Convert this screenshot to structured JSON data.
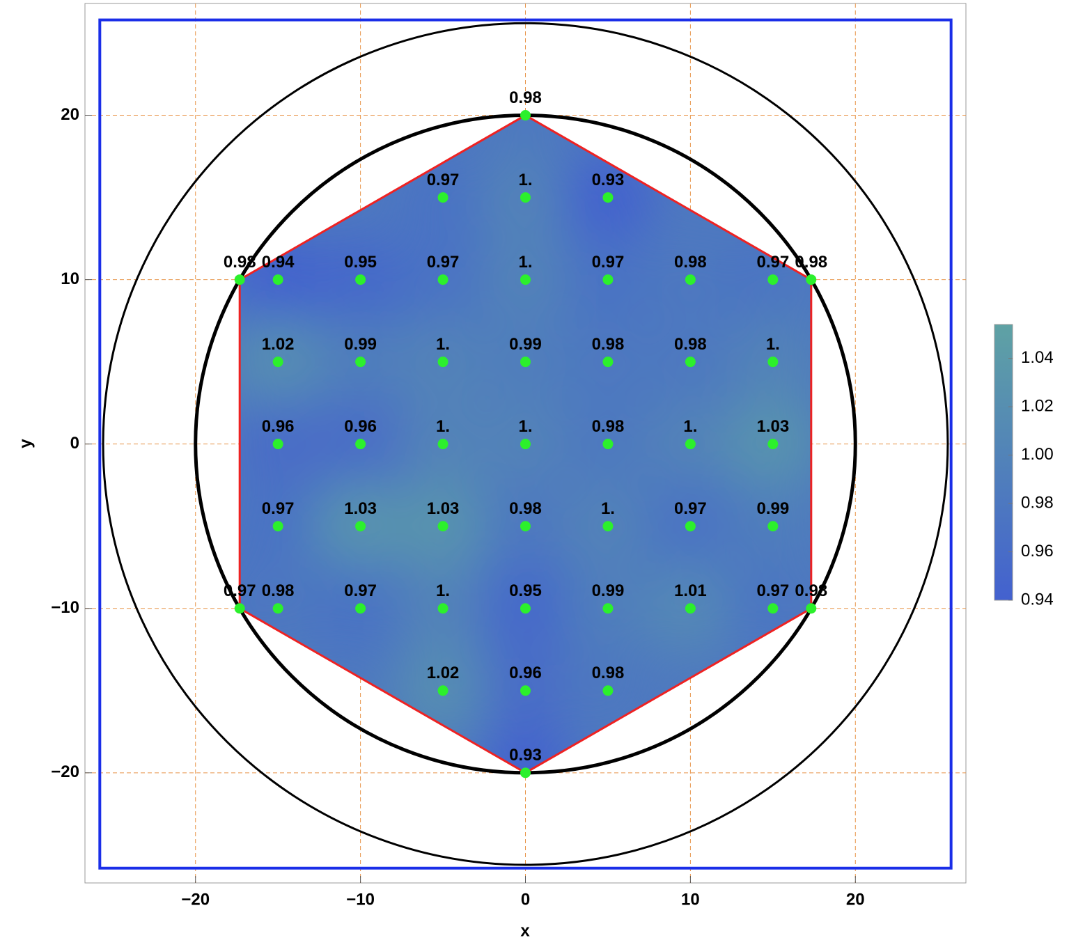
{
  "chart_data": {
    "type": "scatter",
    "xlabel": "x",
    "ylabel": "y",
    "xlim": [
      -26.7,
      26.7
    ],
    "ylim": [
      -26.7,
      26.8
    ],
    "xticks": [
      {
        "value": -20,
        "label": "−20"
      },
      {
        "value": -10,
        "label": "−10"
      },
      0,
      10,
      20
    ],
    "yticks": [
      {
        "value": -20,
        "label": "−20"
      },
      {
        "value": -10,
        "label": "−10"
      },
      0,
      10,
      20
    ],
    "grid": true,
    "grid_color": "#e8954a",
    "point_color": "#2cf02c",
    "hexagon_radius": 20,
    "hexagon_color": "#ee2222",
    "circles": [
      20,
      25.6
    ],
    "square_half_width": 25.8,
    "square_color": "#1a2ee8",
    "series": [
      {
        "x": [
          0,
          -5,
          0,
          5,
          -17.32,
          -15,
          -10,
          -5,
          0,
          5,
          10,
          15,
          17.32,
          -15,
          -10,
          -5,
          0,
          5,
          10,
          15,
          -15,
          -10,
          -5,
          0,
          5,
          10,
          15,
          -15,
          -10,
          -5,
          0,
          5,
          10,
          15,
          -17.32,
          -15,
          -10,
          -5,
          0,
          5,
          10,
          15,
          17.32,
          -5,
          0,
          5,
          0
        ],
        "y": [
          20,
          15,
          15,
          15,
          10,
          10,
          10,
          10,
          10,
          10,
          10,
          10,
          10,
          5,
          5,
          5,
          5,
          5,
          5,
          5,
          0,
          0,
          0,
          0,
          0,
          0,
          0,
          -5,
          -5,
          -5,
          -5,
          -5,
          -5,
          -5,
          -10,
          -10,
          -10,
          -10,
          -10,
          -10,
          -10,
          -10,
          -10,
          -15,
          -15,
          -15,
          -20
        ],
        "values": [
          0.98,
          0.97,
          1,
          0.93,
          0.98,
          0.94,
          0.95,
          0.97,
          1,
          0.97,
          0.98,
          0.97,
          0.98,
          1.02,
          0.99,
          1,
          0.99,
          0.98,
          0.98,
          1,
          0.96,
          0.96,
          1,
          1,
          0.98,
          1,
          1.03,
          0.97,
          1.03,
          1.03,
          0.98,
          1,
          0.97,
          0.99,
          0.97,
          0.98,
          0.97,
          1,
          0.95,
          0.99,
          1.01,
          0.97,
          0.98,
          1.02,
          0.96,
          0.98,
          0.93
        ],
        "value_labels": [
          "0.98",
          "0.97",
          "1.",
          "0.93",
          "0.98",
          "0.94",
          "0.95",
          "0.97",
          "1.",
          "0.97",
          "0.98",
          "0.97",
          "0.98",
          "1.02",
          "0.99",
          "1.",
          "0.99",
          "0.98",
          "0.98",
          "1.",
          "0.96",
          "0.96",
          "1.",
          "1.",
          "0.98",
          "1.",
          "1.03",
          "0.97",
          "1.03",
          "1.03",
          "0.98",
          "1.",
          "0.97",
          "0.99",
          "0.97",
          "0.98",
          "0.97",
          "1.",
          "0.95",
          "0.99",
          "1.01",
          "0.97",
          "0.98",
          "1.02",
          "0.96",
          "0.98",
          "0.93"
        ]
      }
    ],
    "colorbar": {
      "lim": [
        0.94,
        1.054
      ],
      "ticks": [
        0.94,
        0.96,
        0.98,
        {
          "value": 1,
          "label": "1.00"
        },
        1.02,
        1.04
      ],
      "colors": [
        "#4361cf",
        "#5fa2a4"
      ]
    }
  }
}
